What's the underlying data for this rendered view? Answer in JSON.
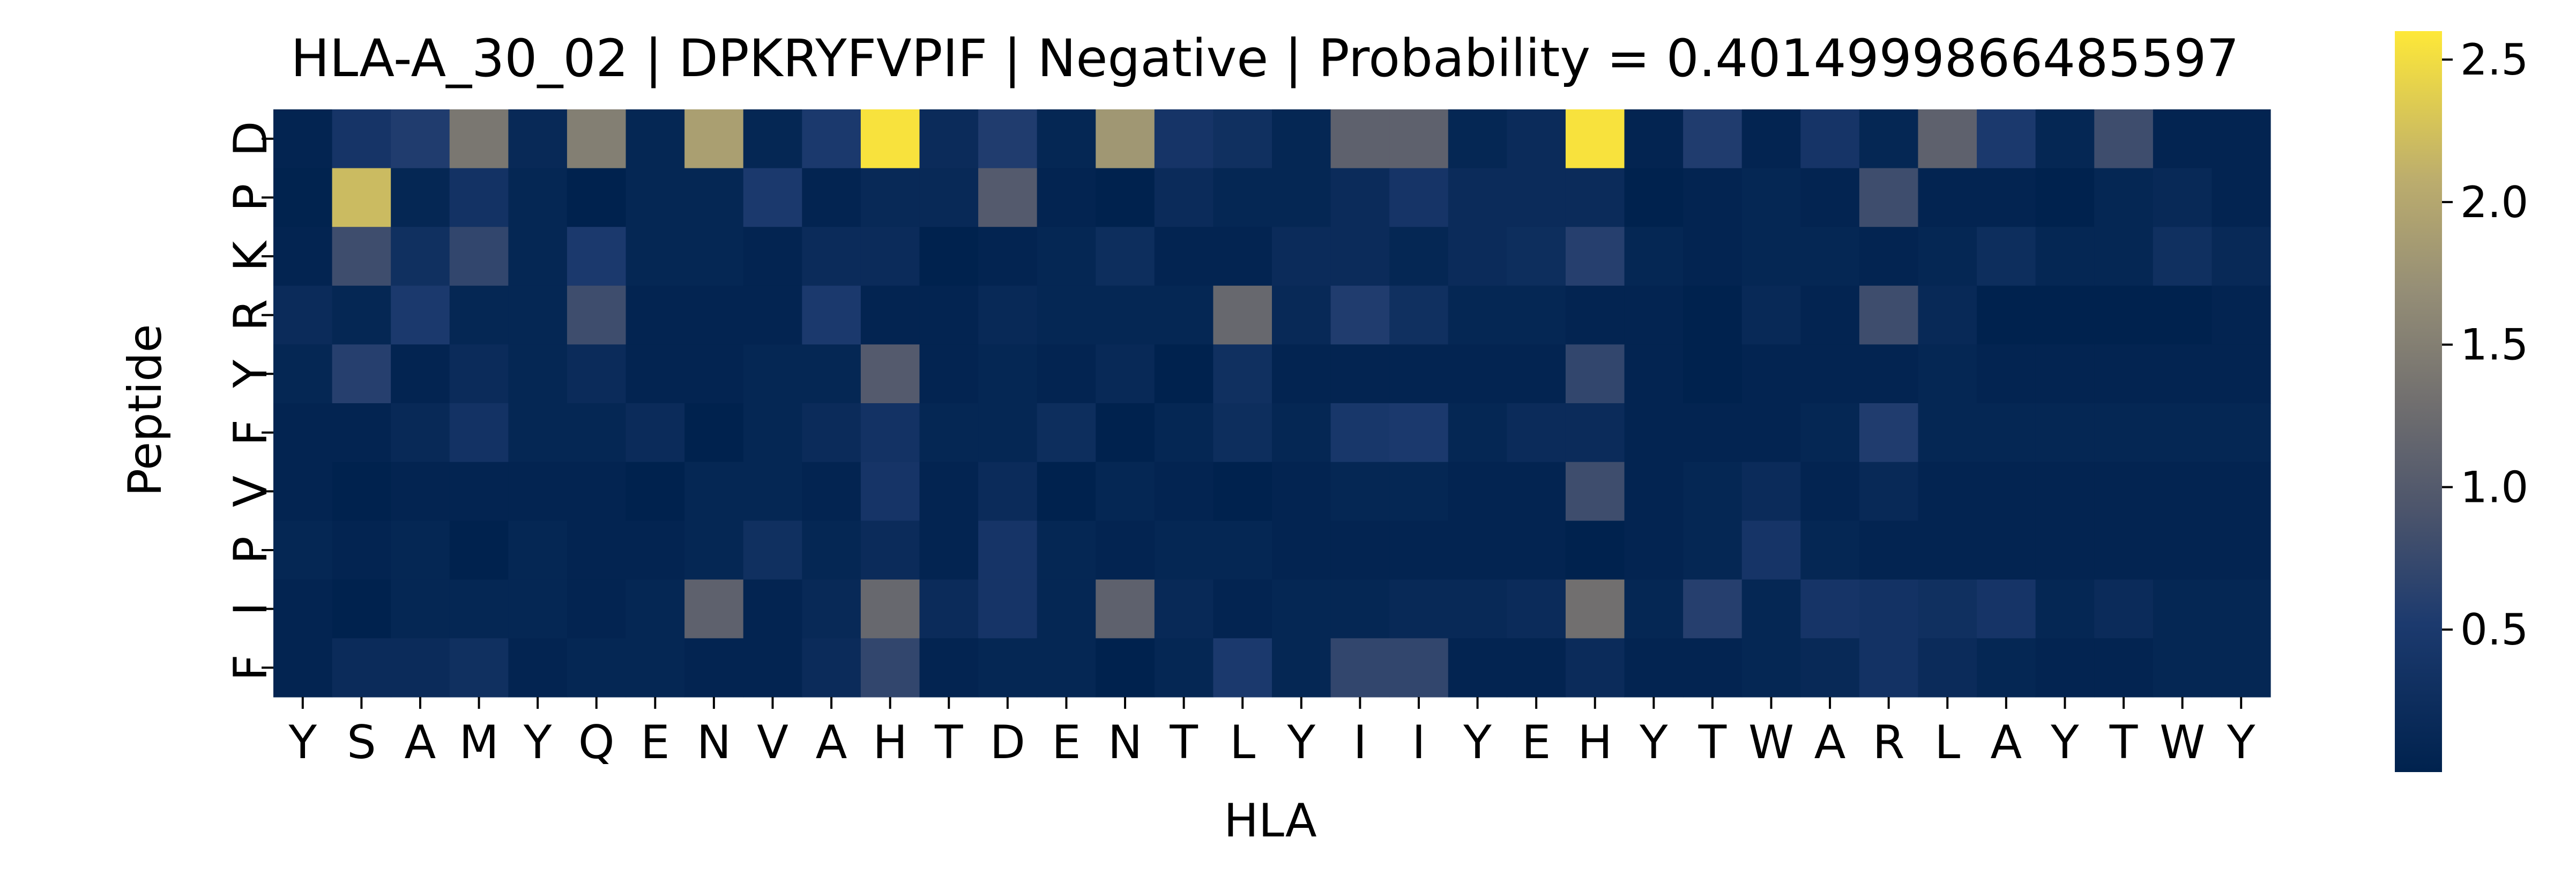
{
  "chart_data": {
    "type": "heatmap",
    "title": "HLA-A_30_02 | DPKRYFVPIF | Negative | Probability = 0.4014999866485597",
    "xlabel": "HLA",
    "ylabel": "Peptide",
    "x_ticks": [
      "Y",
      "S",
      "A",
      "M",
      "Y",
      "Q",
      "E",
      "N",
      "V",
      "A",
      "H",
      "T",
      "D",
      "E",
      "N",
      "T",
      "L",
      "Y",
      "I",
      "I",
      "Y",
      "E",
      "H",
      "Y",
      "T",
      "W",
      "A",
      "R",
      "L",
      "A",
      "Y",
      "T",
      "W",
      "Y"
    ],
    "y_ticks": [
      "D",
      "P",
      "K",
      "R",
      "Y",
      "F",
      "V",
      "P",
      "I",
      "F"
    ],
    "colormap": "cividis",
    "colorbar": {
      "min": 0.0,
      "max": 2.6,
      "ticks": [
        0.5,
        1.0,
        1.5,
        2.0,
        2.5
      ],
      "tick_labels": [
        "0.5",
        "1.0",
        "1.5",
        "2.0",
        "2.5"
      ]
    },
    "values": [
      [
        0.05,
        0.4,
        0.55,
        1.4,
        0.15,
        1.5,
        0.1,
        1.9,
        0.1,
        0.5,
        2.55,
        0.2,
        0.55,
        0.1,
        1.8,
        0.4,
        0.3,
        0.1,
        1.1,
        1.1,
        0.1,
        0.2,
        2.55,
        0.05,
        0.55,
        0.05,
        0.4,
        0.1,
        1.1,
        0.5,
        0.1,
        0.8,
        0.05,
        0.05
      ],
      [
        0.02,
        2.2,
        0.1,
        0.35,
        0.1,
        0.0,
        0.1,
        0.1,
        0.5,
        0.05,
        0.15,
        0.15,
        1.0,
        0.05,
        0.0,
        0.2,
        0.1,
        0.1,
        0.2,
        0.4,
        0.2,
        0.2,
        0.2,
        0.0,
        0.05,
        0.1,
        0.05,
        0.8,
        0.05,
        0.05,
        0.0,
        0.1,
        0.15,
        0.05
      ],
      [
        0.05,
        0.8,
        0.3,
        0.7,
        0.1,
        0.5,
        0.1,
        0.1,
        0.05,
        0.2,
        0.2,
        0.0,
        0.05,
        0.1,
        0.25,
        0.05,
        0.05,
        0.2,
        0.2,
        0.1,
        0.2,
        0.25,
        0.6,
        0.1,
        0.05,
        0.1,
        0.1,
        0.05,
        0.1,
        0.25,
        0.1,
        0.1,
        0.3,
        0.15
      ],
      [
        0.2,
        0.1,
        0.5,
        0.1,
        0.1,
        0.8,
        0.05,
        0.05,
        0.05,
        0.5,
        0.05,
        0.05,
        0.15,
        0.1,
        0.1,
        0.1,
        1.2,
        0.15,
        0.55,
        0.3,
        0.1,
        0.1,
        0.05,
        0.05,
        0.0,
        0.15,
        0.05,
        0.8,
        0.15,
        0.0,
        0.0,
        0.0,
        0.0,
        0.05
      ],
      [
        0.1,
        0.6,
        0.05,
        0.2,
        0.1,
        0.2,
        0.05,
        0.05,
        0.1,
        0.1,
        1.0,
        0.05,
        0.1,
        0.05,
        0.15,
        0.0,
        0.3,
        0.05,
        0.05,
        0.05,
        0.05,
        0.05,
        0.7,
        0.05,
        0.0,
        0.05,
        0.05,
        0.05,
        0.1,
        0.05,
        0.05,
        0.05,
        0.05,
        0.05
      ],
      [
        0.05,
        0.05,
        0.15,
        0.35,
        0.1,
        0.1,
        0.2,
        0.0,
        0.1,
        0.2,
        0.35,
        0.1,
        0.1,
        0.25,
        0.0,
        0.1,
        0.25,
        0.1,
        0.45,
        0.5,
        0.1,
        0.2,
        0.2,
        0.05,
        0.05,
        0.05,
        0.1,
        0.55,
        0.1,
        0.1,
        0.1,
        0.1,
        0.1,
        0.1
      ],
      [
        0.05,
        0.0,
        0.05,
        0.05,
        0.05,
        0.05,
        0.0,
        0.1,
        0.1,
        0.05,
        0.4,
        0.05,
        0.2,
        0.0,
        0.1,
        0.05,
        0.0,
        0.05,
        0.1,
        0.1,
        0.05,
        0.05,
        0.8,
        0.05,
        0.1,
        0.2,
        0.05,
        0.15,
        0.05,
        0.05,
        0.05,
        0.05,
        0.05,
        0.05
      ],
      [
        0.1,
        0.05,
        0.1,
        0.0,
        0.1,
        0.05,
        0.05,
        0.1,
        0.3,
        0.1,
        0.2,
        0.05,
        0.4,
        0.1,
        0.05,
        0.1,
        0.1,
        0.05,
        0.05,
        0.05,
        0.05,
        0.05,
        0.0,
        0.05,
        0.1,
        0.4,
        0.1,
        0.05,
        0.05,
        0.05,
        0.05,
        0.05,
        0.05,
        0.05
      ],
      [
        0.05,
        0.0,
        0.1,
        0.1,
        0.1,
        0.05,
        0.1,
        1.1,
        0.05,
        0.15,
        1.2,
        0.2,
        0.4,
        0.1,
        1.1,
        0.15,
        0.05,
        0.1,
        0.1,
        0.15,
        0.15,
        0.2,
        1.3,
        0.1,
        0.6,
        0.1,
        0.4,
        0.35,
        0.3,
        0.4,
        0.1,
        0.2,
        0.1,
        0.1
      ],
      [
        0.05,
        0.2,
        0.2,
        0.3,
        0.05,
        0.1,
        0.1,
        0.05,
        0.05,
        0.2,
        0.7,
        0.05,
        0.1,
        0.1,
        0.0,
        0.1,
        0.5,
        0.1,
        0.7,
        0.7,
        0.05,
        0.05,
        0.2,
        0.05,
        0.05,
        0.1,
        0.15,
        0.35,
        0.2,
        0.1,
        0.05,
        0.05,
        0.1,
        0.1
      ]
    ]
  }
}
